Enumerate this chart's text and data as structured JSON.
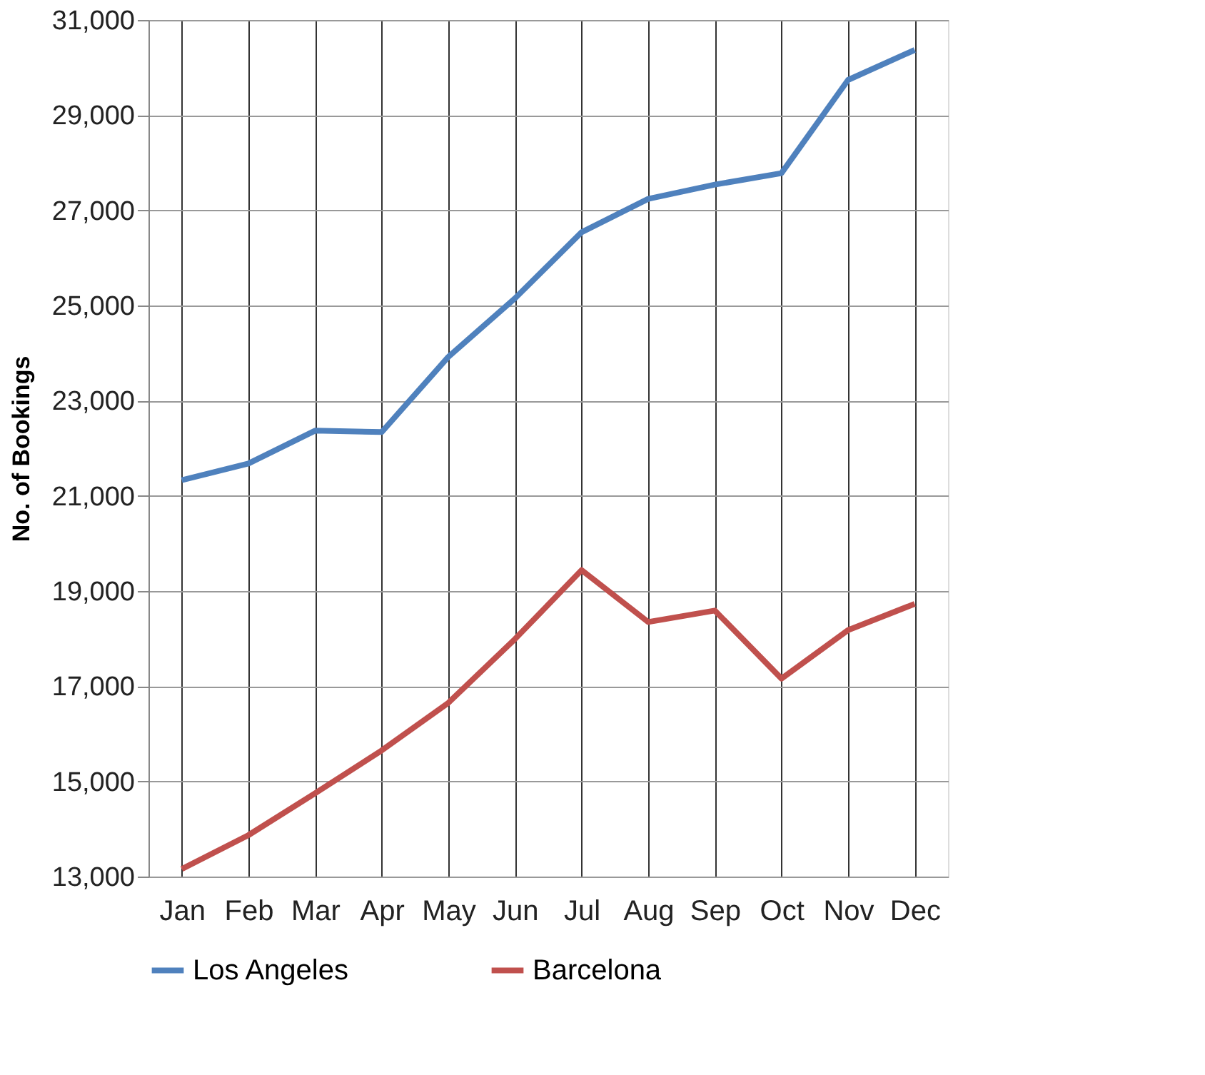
{
  "chart_data": {
    "type": "line",
    "ylabel": "No. of Bookings",
    "categories": [
      "Jan",
      "Feb",
      "Mar",
      "Apr",
      "May",
      "Jun",
      "Jul",
      "Aug",
      "Sep",
      "Oct",
      "Nov",
      "Dec"
    ],
    "series": [
      {
        "name": "Los Angeles",
        "color": "#4f81bd",
        "values": [
          21330,
          21680,
          22370,
          22340,
          23920,
          25150,
          26540,
          27240,
          27540,
          27780,
          29740,
          30370
        ]
      },
      {
        "name": "Barcelona",
        "color": "#c0504d",
        "values": [
          13160,
          13870,
          14750,
          15650,
          16650,
          17990,
          19440,
          18350,
          18590,
          17160,
          18180,
          18730
        ]
      }
    ],
    "ylim": [
      13000,
      31000
    ],
    "yticks": [
      {
        "value": 13000,
        "label": "13,000"
      },
      {
        "value": 15000,
        "label": "15,000"
      },
      {
        "value": 17000,
        "label": "17,000"
      },
      {
        "value": 19000,
        "label": "19,000"
      },
      {
        "value": 21000,
        "label": "21,000"
      },
      {
        "value": 23000,
        "label": "23,000"
      },
      {
        "value": 25000,
        "label": "25,000"
      },
      {
        "value": 27000,
        "label": "27,000"
      },
      {
        "value": 29000,
        "label": "29,000"
      },
      {
        "value": 31000,
        "label": "31,000"
      }
    ],
    "grid": true,
    "legend": "bottom",
    "marker": "none",
    "line_style": "solid"
  }
}
